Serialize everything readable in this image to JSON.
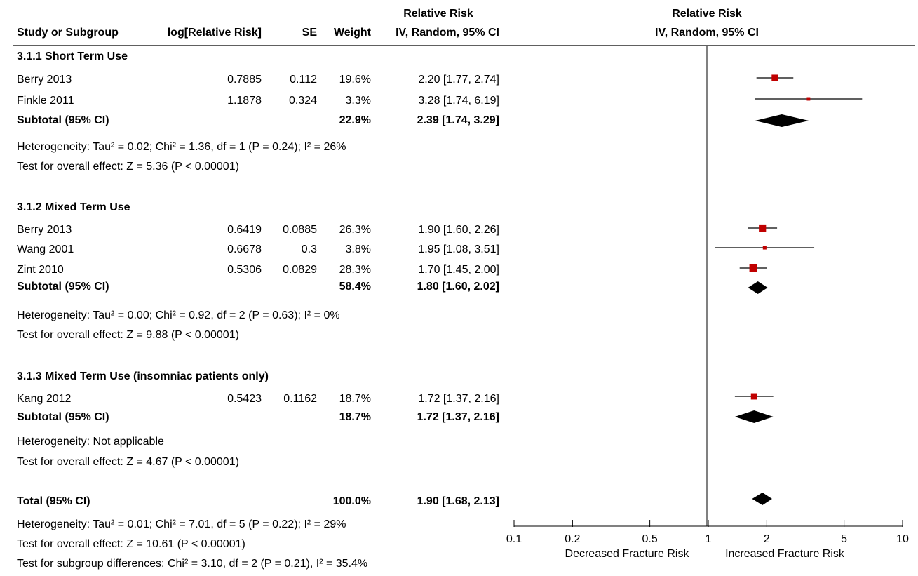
{
  "header": {
    "col_study": "Study or Subgroup",
    "col_lograte": "log[Relative Risk]",
    "col_se": "SE",
    "col_weight": "Weight",
    "col_rr_title": "Relative Risk",
    "col_rr_method": "IV, Random, 95% CI",
    "plot_title": "Relative Risk",
    "plot_method": "IV, Random, 95% CI"
  },
  "chart_data": {
    "type": "forest",
    "x_scale": "log",
    "xlim": [
      0.1,
      10
    ],
    "null_line": 1,
    "x_ticks": [
      0.1,
      0.2,
      0.5,
      1,
      2,
      5,
      10
    ],
    "x_tick_labels": [
      "0.1",
      "0.2",
      "0.5",
      "1",
      "2",
      "5",
      "10"
    ],
    "favours_left": "Decreased Fracture Risk",
    "favours_right": "Increased Fracture Risk",
    "marker_color": "#c00000",
    "groups": [
      {
        "title": "3.1.1 Short Term Use",
        "studies": [
          {
            "name": "Berry 2013",
            "log_rr": "0.7885",
            "se": "0.112",
            "weight_label": "19.6%",
            "ci_label": "2.20 [1.77, 2.74]",
            "weight": 19.6,
            "rr": 2.2,
            "lo": 1.77,
            "hi": 2.74
          },
          {
            "name": "Finkle 2011",
            "log_rr": "1.1878",
            "se": "0.324",
            "weight_label": "3.3%",
            "ci_label": "3.28 [1.74, 6.19]",
            "weight": 3.3,
            "rr": 3.28,
            "lo": 1.74,
            "hi": 6.19
          }
        ],
        "subtotal": {
          "label": "Subtotal (95% CI)",
          "weight_label": "22.9%",
          "ci_label": "2.39 [1.74, 3.29]",
          "rr": 2.39,
          "lo": 1.74,
          "hi": 3.29
        },
        "heterogeneity": "Heterogeneity: Tau² = 0.02; Chi² = 1.36, df = 1 (P = 0.24); I² = 26%",
        "overall": "Test for overall effect: Z = 5.36 (P < 0.00001)"
      },
      {
        "title": "3.1.2 Mixed Term Use",
        "studies": [
          {
            "name": "Berry 2013",
            "log_rr": "0.6419",
            "se": "0.0885",
            "weight_label": "26.3%",
            "ci_label": "1.90 [1.60, 2.26]",
            "weight": 26.3,
            "rr": 1.9,
            "lo": 1.6,
            "hi": 2.26
          },
          {
            "name": "Wang 2001",
            "log_rr": "0.6678",
            "se": "0.3",
            "weight_label": "3.8%",
            "ci_label": "1.95 [1.08, 3.51]",
            "weight": 3.8,
            "rr": 1.95,
            "lo": 1.08,
            "hi": 3.51
          },
          {
            "name": "Zint 2010",
            "log_rr": "0.5306",
            "se": "0.0829",
            "weight_label": "28.3%",
            "ci_label": "1.70 [1.45, 2.00]",
            "weight": 28.3,
            "rr": 1.7,
            "lo": 1.45,
            "hi": 2.0
          }
        ],
        "subtotal": {
          "label": "Subtotal (95% CI)",
          "weight_label": "58.4%",
          "ci_label": "1.80 [1.60, 2.02]",
          "rr": 1.8,
          "lo": 1.6,
          "hi": 2.02
        },
        "heterogeneity": "Heterogeneity: Tau² = 0.00; Chi² = 0.92, df = 2 (P = 0.63); I² = 0%",
        "overall": "Test for overall effect: Z = 9.88 (P < 0.00001)"
      },
      {
        "title": "3.1.3 Mixed Term Use (insomniac patients only)",
        "studies": [
          {
            "name": "Kang 2012",
            "log_rr": "0.5423",
            "se": "0.1162",
            "weight_label": "18.7%",
            "ci_label": "1.72 [1.37, 2.16]",
            "weight": 18.7,
            "rr": 1.72,
            "lo": 1.37,
            "hi": 2.16
          }
        ],
        "subtotal": {
          "label": "Subtotal (95% CI)",
          "weight_label": "18.7%",
          "ci_label": "1.72 [1.37, 2.16]",
          "rr": 1.72,
          "lo": 1.37,
          "hi": 2.16
        },
        "heterogeneity": "Heterogeneity: Not applicable",
        "overall": "Test for overall effect: Z = 4.67 (P < 0.00001)"
      }
    ],
    "total": {
      "label": "Total (95% CI)",
      "weight_label": "100.0%",
      "ci_label": "1.90 [1.68, 2.13]",
      "rr": 1.9,
      "lo": 1.68,
      "hi": 2.13
    },
    "total_heterogeneity": "Heterogeneity: Tau² = 0.01; Chi² = 7.01, df = 5 (P = 0.22); I² = 29%",
    "total_overall": "Test for overall effect: Z = 10.61 (P < 0.00001)",
    "subgroup_differences": "Test for subgroup differences: Chi² = 3.10, df = 2 (P = 0.21), I² = 35.4%"
  }
}
